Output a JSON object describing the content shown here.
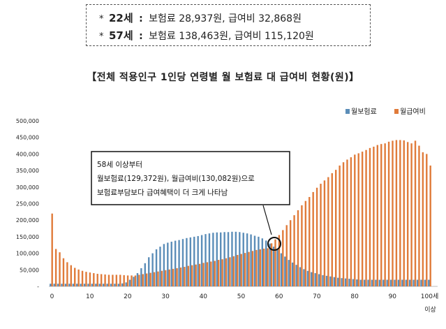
{
  "summary": {
    "rows": [
      {
        "star": "*",
        "age": "22세",
        "colon": ":",
        "text": "보험료 28,937원, 급여비 32,868원"
      },
      {
        "star": "*",
        "age": "57세",
        "colon": ":",
        "text": "보험료 138,463원, 급여비 115,120원"
      }
    ]
  },
  "annotation": {
    "lines": [
      "58세 이상부터",
      "월보험료(129,372원), 월급여비(130,082원)으로",
      "보험료부담보다 급여혜택이 더 크게 나타남"
    ]
  },
  "colors": {
    "premium": "#5B8DB8",
    "benefit": "#E07B3A"
  },
  "chart_data": {
    "type": "bar",
    "title": "【전체 적용인구 1인당 연령별 월 보험료 대 급여비 현황(원)】",
    "x_tick_labels": [
      "0",
      "10",
      "20",
      "30",
      "40",
      "50",
      "60",
      "70",
      "80",
      "90",
      "100세",
      "이상"
    ],
    "y_tick_labels": [
      "-",
      "50,000",
      "100,000",
      "150,000",
      "200,000",
      "250,000",
      "300,000",
      "350,000",
      "400,000",
      "450,000",
      "500,000"
    ],
    "ylim": [
      0,
      500000
    ],
    "legend_position": "top-right",
    "categories": [
      "0",
      "1",
      "2",
      "3",
      "4",
      "5",
      "6",
      "7",
      "8",
      "9",
      "10",
      "11",
      "12",
      "13",
      "14",
      "15",
      "16",
      "17",
      "18",
      "19",
      "20",
      "21",
      "22",
      "23",
      "24",
      "25",
      "26",
      "27",
      "28",
      "29",
      "30",
      "31",
      "32",
      "33",
      "34",
      "35",
      "36",
      "37",
      "38",
      "39",
      "40",
      "41",
      "42",
      "43",
      "44",
      "45",
      "46",
      "47",
      "48",
      "49",
      "50",
      "51",
      "52",
      "53",
      "54",
      "55",
      "56",
      "57",
      "58",
      "59",
      "60",
      "61",
      "62",
      "63",
      "64",
      "65",
      "66",
      "67",
      "68",
      "69",
      "70",
      "71",
      "72",
      "73",
      "74",
      "75",
      "76",
      "77",
      "78",
      "79",
      "80",
      "81",
      "82",
      "83",
      "84",
      "85",
      "86",
      "87",
      "88",
      "89",
      "90",
      "91",
      "92",
      "93",
      "94",
      "95",
      "96",
      "97",
      "98",
      "99",
      "100"
    ],
    "series": [
      {
        "name": "월보험료",
        "values": [
          8000,
          8000,
          8000,
          8000,
          8000,
          8000,
          8000,
          8000,
          8000,
          8000,
          8000,
          8000,
          8000,
          8000,
          8000,
          8000,
          8000,
          8000,
          8000,
          9000,
          12000,
          20000,
          28937,
          40000,
          55000,
          70000,
          88000,
          100000,
          112000,
          120000,
          128000,
          132000,
          135000,
          138000,
          140000,
          143000,
          146000,
          148000,
          150000,
          152000,
          155000,
          158000,
          160000,
          162000,
          163000,
          163000,
          164000,
          164000,
          165000,
          165000,
          164000,
          162000,
          160000,
          157000,
          153000,
          150000,
          145000,
          138463,
          129372,
          120000,
          110000,
          100000,
          90000,
          80000,
          72000,
          65000,
          58000,
          52000,
          47000,
          43000,
          40000,
          37000,
          34000,
          32000,
          30000,
          28000,
          26000,
          25000,
          24000,
          23000,
          22000,
          21000,
          20000,
          20000,
          20000,
          20000,
          20000,
          20000,
          20000,
          20000,
          20000,
          20000,
          20000,
          20000,
          20000,
          20000,
          20000,
          20000,
          20000,
          20000,
          20000
        ]
      },
      {
        "name": "월급여비",
        "values": [
          220000,
          113000,
          103000,
          85000,
          73000,
          64000,
          56000,
          51000,
          47000,
          44000,
          42000,
          40000,
          38000,
          37000,
          36000,
          35000,
          35000,
          35000,
          35000,
          34000,
          33000,
          33000,
          32868,
          35000,
          37000,
          39000,
          41000,
          43000,
          45000,
          47000,
          49000,
          51000,
          53000,
          55000,
          57000,
          59000,
          62000,
          64000,
          66000,
          68000,
          71000,
          73000,
          75000,
          77000,
          80000,
          82000,
          85000,
          88000,
          91000,
          95000,
          98000,
          101000,
          104000,
          107000,
          110000,
          112000,
          114000,
          115120,
          130082,
          142000,
          155000,
          170000,
          185000,
          200000,
          215000,
          230000,
          245000,
          258000,
          270000,
          285000,
          298000,
          310000,
          320000,
          330000,
          342000,
          352000,
          365000,
          375000,
          383000,
          390000,
          398000,
          402000,
          407000,
          412000,
          418000,
          422000,
          427000,
          430000,
          432000,
          437000,
          440000,
          442000,
          442000,
          441000,
          436000,
          432000,
          440000,
          425000,
          405000,
          400000,
          365000
        ]
      }
    ]
  }
}
